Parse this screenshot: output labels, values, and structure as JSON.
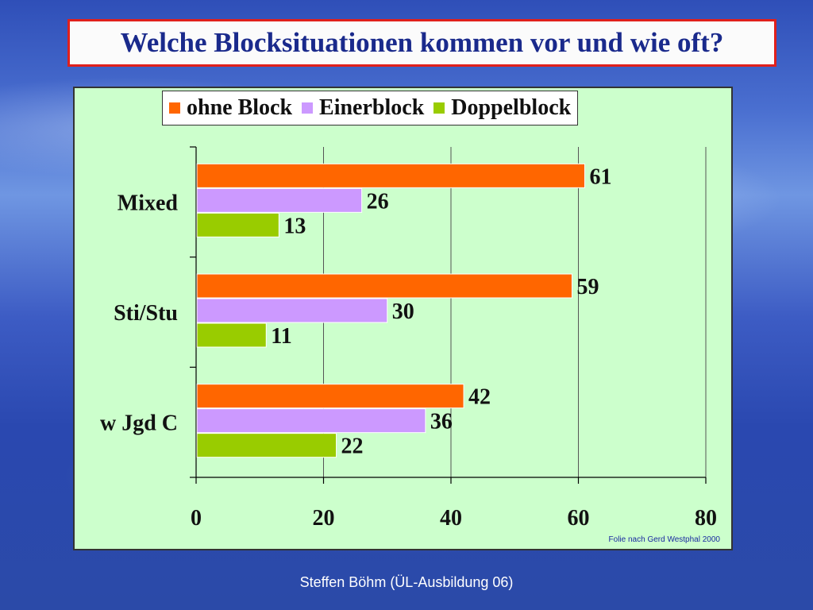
{
  "title": "Welche Blocksituationen kommen vor und wie oft?",
  "footer": "Steffen Böhm (ÜL-Ausbildung 06)",
  "source_note": "Folie nach Gerd Westphal 2000",
  "chart_data": {
    "type": "bar",
    "orientation": "horizontal",
    "title": "",
    "xlabel": "",
    "ylabel": "",
    "categories": [
      "Mixed",
      "Sti/Stu",
      "w Jgd C"
    ],
    "series": [
      {
        "name": "ohne Block",
        "color": "#ff6600",
        "values": [
          61,
          59,
          42
        ]
      },
      {
        "name": "Einerblock",
        "color": "#cc99ff",
        "values": [
          26,
          30,
          36
        ]
      },
      {
        "name": "Doppelblock",
        "color": "#99cc00",
        "values": [
          13,
          11,
          22
        ]
      }
    ],
    "xlim": [
      0,
      80
    ],
    "xticks": [
      "0",
      "20",
      "40",
      "60",
      "80"
    ],
    "grid": true,
    "legend_position": "top",
    "data_labels": true,
    "background": "#ccffcc"
  }
}
